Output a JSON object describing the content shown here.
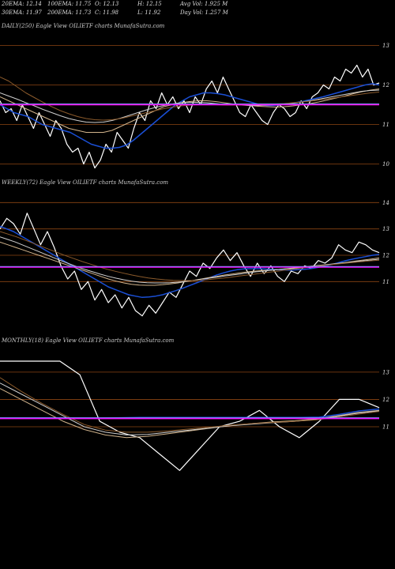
{
  "header": {
    "row1": [
      {
        "id": "ema20",
        "text": "20EMA: 12.14"
      },
      {
        "id": "ema100",
        "text": "100EMA: 11.75"
      },
      {
        "id": "open",
        "text": "O: 12.13"
      },
      {
        "id": "high",
        "text": "H: 12.15"
      },
      {
        "id": "avgvol",
        "text": "Avg Vol: 1.925 M"
      }
    ],
    "row2": [
      {
        "id": "ema30",
        "text": "30EMA: 11.97"
      },
      {
        "id": "ema200",
        "text": "200EMA: 11.73"
      },
      {
        "id": "close",
        "text": "C: 11.98"
      },
      {
        "id": "low",
        "text": "L: 11.92"
      },
      {
        "id": "dayvol",
        "text": "Day Vol: 1.257 M"
      }
    ]
  },
  "chart_data": [
    {
      "type": "line",
      "title": "DAILY(250) Eagle  View  OILIETF charts MunafaSutra.com",
      "ylim": [
        9.65,
        13.35
      ],
      "yticks": [
        10,
        11,
        12,
        13
      ],
      "hlines": [
        12.03,
        11.6
      ],
      "colors": {
        "background": "#000000",
        "grid": "#8b4513",
        "price": "#ffffff",
        "ema_fast": "#1a4fd6",
        "ema_mid": "#d2b48c",
        "ema_slow": "#cfcfcf",
        "ema_long": "#8b5a2b",
        "flat": "#ff00ff",
        "flat2": "#8a8aff"
      },
      "series": [
        {
          "key": "price",
          "values": [
            11.6,
            11.3,
            11.4,
            11.1,
            11.5,
            11.2,
            10.9,
            11.3,
            11.0,
            10.7,
            11.1,
            10.9,
            10.5,
            10.3,
            10.4,
            10.0,
            10.3,
            9.9,
            10.1,
            10.5,
            10.3,
            10.8,
            10.6,
            10.4,
            10.9,
            11.3,
            11.1,
            11.6,
            11.4,
            11.8,
            11.5,
            11.7,
            11.4,
            11.6,
            11.3,
            11.7,
            11.5,
            11.9,
            12.1,
            11.8,
            12.2,
            11.9,
            11.6,
            11.3,
            11.2,
            11.5,
            11.3,
            11.1,
            11.0,
            11.3,
            11.5,
            11.4,
            11.2,
            11.3,
            11.6,
            11.4,
            11.7,
            11.8,
            12.0,
            11.9,
            12.2,
            12.1,
            12.4,
            12.3,
            12.5,
            12.2,
            12.4,
            12.0,
            12.05
          ]
        },
        {
          "key": "ema_fast",
          "values": [
            11.5,
            11.4,
            11.3,
            11.25,
            11.2,
            11.1,
            11.0,
            10.95,
            10.9,
            10.85,
            10.8,
            10.7,
            10.6,
            10.5,
            10.45,
            10.4,
            10.4,
            10.42,
            10.48,
            10.6,
            10.75,
            10.9,
            11.05,
            11.2,
            11.35,
            11.5,
            11.6,
            11.7,
            11.75,
            11.8,
            11.8,
            11.78,
            11.75,
            11.7,
            11.65,
            11.6,
            11.55,
            11.5,
            11.48,
            11.48,
            11.5,
            11.52,
            11.55,
            11.58,
            11.62,
            11.66,
            11.7,
            11.75,
            11.8,
            11.85,
            11.9,
            11.95,
            12.0,
            12.03,
            12.0
          ]
        },
        {
          "key": "ema_mid",
          "values": [
            11.7,
            11.6,
            11.5,
            11.4,
            11.3,
            11.2,
            11.1,
            11.0,
            10.9,
            10.85,
            10.8,
            10.8,
            10.8,
            10.85,
            10.95,
            11.05,
            11.15,
            11.25,
            11.35,
            11.45,
            11.5,
            11.55,
            11.58,
            11.6,
            11.6,
            11.58,
            11.55,
            11.52,
            11.5,
            11.48,
            11.46,
            11.45,
            11.44,
            11.45,
            11.47,
            11.5,
            11.53,
            11.57,
            11.62,
            11.67,
            11.72,
            11.78,
            11.83,
            11.87,
            11.9
          ]
        },
        {
          "key": "ema_slow",
          "values": [
            11.8,
            11.72,
            11.64,
            11.55,
            11.47,
            11.38,
            11.3,
            11.22,
            11.15,
            11.1,
            11.06,
            11.05,
            11.06,
            11.1,
            11.16,
            11.23,
            11.3,
            11.37,
            11.43,
            11.48,
            11.52,
            11.55,
            11.56,
            11.56,
            11.55,
            11.53,
            11.51,
            11.5,
            11.49,
            11.48,
            11.48,
            11.49,
            11.5,
            11.52,
            11.54,
            11.57,
            11.6,
            11.64,
            11.68,
            11.72,
            11.76,
            11.8,
            11.84,
            11.86,
            11.87
          ]
        },
        {
          "key": "ema_long",
          "values": [
            12.2,
            12.1,
            11.95,
            11.8,
            11.68,
            11.56,
            11.45,
            11.35,
            11.27,
            11.2,
            11.15,
            11.12,
            11.11,
            11.12,
            11.15,
            11.2,
            11.25,
            11.3,
            11.35,
            11.4,
            11.44,
            11.47,
            11.49,
            11.5,
            11.5,
            11.5,
            11.49,
            11.49,
            11.49,
            11.5,
            11.5,
            11.51,
            11.52,
            11.53,
            11.55,
            11.57,
            11.59,
            11.62,
            11.65,
            11.68,
            11.71,
            11.74,
            11.77,
            11.8,
            11.82
          ]
        },
        {
          "key": "flat",
          "values": [
            11.5,
            11.5
          ]
        },
        {
          "key": "flat2",
          "values": [
            11.52,
            11.52
          ]
        }
      ]
    },
    {
      "type": "line",
      "title": "WEEKLY(72) Eagle  View  OILIETF charts MunafaSutra.com",
      "ylim": [
        9.0,
        14.55
      ],
      "yticks": [
        11,
        12,
        13,
        14
      ],
      "hlines": [
        13.3,
        12.2,
        10.9
      ],
      "colors": {
        "background": "#000000",
        "grid": "#8b4513",
        "price": "#ffffff",
        "ema_fast": "#1a4fd6",
        "ema_mid": "#d2b48c",
        "ema_slow": "#cfcfcf",
        "ema_long": "#8b5a2b",
        "flat": "#ff00ff",
        "flat2": "#8a8aff"
      },
      "series": [
        {
          "key": "price",
          "values": [
            13.0,
            13.4,
            13.2,
            12.8,
            13.6,
            13.0,
            12.4,
            12.9,
            12.3,
            11.6,
            11.1,
            11.4,
            10.7,
            11.0,
            10.3,
            10.7,
            10.2,
            10.5,
            10.0,
            10.4,
            9.9,
            9.7,
            10.1,
            9.8,
            10.2,
            10.6,
            10.4,
            10.9,
            11.4,
            11.2,
            11.7,
            11.5,
            11.9,
            12.2,
            11.8,
            12.1,
            11.6,
            11.2,
            11.7,
            11.3,
            11.6,
            11.2,
            11.0,
            11.4,
            11.3,
            11.6,
            11.5,
            11.8,
            11.7,
            11.9,
            12.4,
            12.2,
            12.1,
            12.5,
            12.4,
            12.2,
            12.1
          ]
        },
        {
          "key": "ema_fast",
          "values": [
            13.1,
            13.0,
            12.9,
            12.75,
            12.6,
            12.45,
            12.3,
            12.15,
            12.0,
            11.85,
            11.7,
            11.55,
            11.4,
            11.25,
            11.1,
            10.95,
            10.8,
            10.7,
            10.6,
            10.5,
            10.45,
            10.4,
            10.42,
            10.45,
            10.5,
            10.58,
            10.66,
            10.75,
            10.85,
            10.95,
            11.05,
            11.15,
            11.25,
            11.33,
            11.4,
            11.45,
            11.48,
            11.49,
            11.49,
            11.48,
            11.47,
            11.45,
            11.44,
            11.44,
            11.45,
            11.47,
            11.5,
            11.54,
            11.59,
            11.65,
            11.72,
            11.79,
            11.85,
            11.9,
            11.95,
            12.0,
            12.03
          ]
        },
        {
          "key": "ema_mid",
          "values": [
            12.5,
            12.4,
            12.3,
            12.2,
            12.1,
            12.0,
            11.9,
            11.8,
            11.7,
            11.6,
            11.5,
            11.4,
            11.3,
            11.2,
            11.1,
            11.02,
            10.95,
            10.9,
            10.87,
            10.86,
            10.86,
            10.88,
            10.91,
            10.95,
            11.0,
            11.05,
            11.1,
            11.15,
            11.2,
            11.25,
            11.29,
            11.33,
            11.37,
            11.4,
            11.42,
            11.44,
            11.46,
            11.48,
            11.5,
            11.52,
            11.55,
            11.58,
            11.62,
            11.66,
            11.7,
            11.74,
            11.78,
            11.82,
            11.86,
            11.9
          ]
        },
        {
          "key": "ema_slow",
          "values": [
            12.7,
            12.6,
            12.5,
            12.38,
            12.26,
            12.14,
            12.02,
            11.9,
            11.78,
            11.67,
            11.56,
            11.46,
            11.37,
            11.28,
            11.2,
            11.13,
            11.07,
            11.02,
            10.98,
            10.96,
            10.95,
            10.95,
            10.96,
            10.98,
            11.01,
            11.05,
            11.09,
            11.13,
            11.17,
            11.21,
            11.25,
            11.29,
            11.33,
            11.37,
            11.4,
            11.43,
            11.46,
            11.49,
            11.52,
            11.55,
            11.58,
            11.61,
            11.64,
            11.67,
            11.7,
            11.73,
            11.76,
            11.79,
            11.82,
            11.85
          ]
        },
        {
          "key": "ema_long",
          "values": [
            12.9,
            12.8,
            12.7,
            12.58,
            12.46,
            12.34,
            12.22,
            12.1,
            11.98,
            11.87,
            11.76,
            11.66,
            11.56,
            11.47,
            11.39,
            11.32,
            11.25,
            11.19,
            11.14,
            11.1,
            11.07,
            11.05,
            11.04,
            11.04,
            11.05,
            11.07,
            11.1,
            11.13,
            11.17,
            11.21,
            11.25,
            11.29,
            11.33,
            11.37,
            11.41,
            11.45,
            11.49,
            11.53,
            11.57,
            11.61,
            11.64,
            11.67,
            11.7,
            11.73,
            11.76,
            11.79,
            11.81
          ]
        },
        {
          "key": "flat",
          "values": [
            11.55,
            11.55
          ]
        },
        {
          "key": "flat2",
          "values": [
            11.57,
            11.57
          ]
        }
      ]
    },
    {
      "type": "line",
      "title": "MONTHLY(18) Eagle  View  OILIETF charts MunafaSutra.com",
      "ylim": [
        8.6,
        13.95
      ],
      "yticks": [
        11,
        12,
        13
      ],
      "hlines": [
        12.9,
        11.9,
        10.9
      ],
      "colors": {
        "background": "#000000",
        "grid": "#8b4513",
        "price": "#ffffff",
        "ema_fast": "#1a4fd6",
        "ema_mid": "#d2b48c",
        "ema_slow": "#cfcfcf",
        "ema_long": "#8b5a2b",
        "flat": "#ff00ff",
        "flat2": "#8a8aff"
      },
      "series": [
        {
          "key": "price",
          "values": [
            13.4,
            13.4,
            13.4,
            13.4,
            12.9,
            11.2,
            10.8,
            10.6,
            10.0,
            9.4,
            10.2,
            11.0,
            11.2,
            11.6,
            11.0,
            10.6,
            11.2,
            12.0,
            12.0,
            11.7
          ]
        },
        {
          "key": "ema_fast",
          "values": [
            11.32,
            11.32,
            11.32,
            11.32,
            11.32,
            11.32,
            11.33,
            11.34,
            11.34,
            11.34,
            11.34,
            11.34,
            11.34,
            11.34,
            11.34,
            11.34,
            11.35,
            11.45,
            11.58,
            11.65
          ]
        },
        {
          "key": "ema_mid",
          "values": [
            12.4,
            12.0,
            11.6,
            11.2,
            10.9,
            10.7,
            10.6,
            10.65,
            10.75,
            10.85,
            10.95,
            11.05,
            11.12,
            11.18,
            11.22,
            11.28,
            11.4,
            11.52,
            11.6
          ]
        },
        {
          "key": "ema_slow",
          "values": [
            12.6,
            12.2,
            11.8,
            11.4,
            11.0,
            10.8,
            10.7,
            10.72,
            10.8,
            10.88,
            10.96,
            11.04,
            11.1,
            11.15,
            11.2,
            11.26,
            11.38,
            11.5,
            11.58
          ]
        },
        {
          "key": "ema_long",
          "values": [
            12.8,
            12.3,
            11.85,
            11.45,
            11.08,
            10.88,
            10.8,
            10.8,
            10.85,
            10.92,
            10.99,
            11.06,
            11.12,
            11.16,
            11.2,
            11.25,
            11.35,
            11.46,
            11.56
          ]
        },
        {
          "key": "flat",
          "values": [
            11.3,
            11.3
          ]
        },
        {
          "key": "flat2",
          "values": [
            11.33,
            11.33
          ]
        }
      ]
    }
  ]
}
